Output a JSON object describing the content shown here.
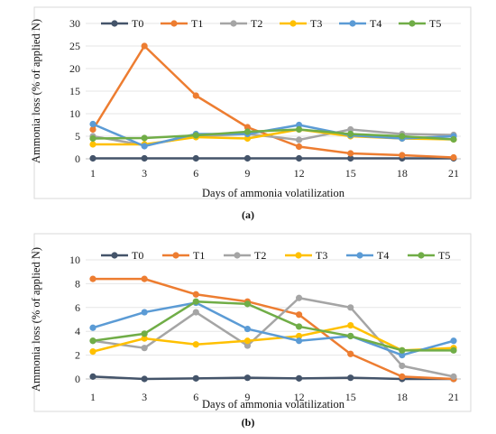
{
  "chart_data": [
    {
      "type": "line",
      "panel_label": "(a)",
      "xlabel": "Days of ammonia volatilization",
      "ylabel": "Ammonia loss (% of applied N)",
      "x": [
        1,
        3,
        6,
        9,
        12,
        15,
        18,
        21
      ],
      "ylim": [
        0,
        30
      ],
      "yticks": [
        0,
        5,
        10,
        15,
        20,
        25,
        30
      ],
      "grid": true,
      "legend_position": "top",
      "series": [
        {
          "name": "T0",
          "color": "#44546a",
          "values": [
            0.1,
            0.1,
            0.1,
            0.1,
            0.1,
            0.1,
            0.1,
            0.1
          ]
        },
        {
          "name": "T1",
          "color": "#ed7d31",
          "values": [
            6.5,
            25.0,
            14.0,
            7.0,
            2.7,
            1.2,
            0.8,
            0.3
          ]
        },
        {
          "name": "T2",
          "color": "#a5a5a5",
          "values": [
            5.0,
            3.0,
            5.0,
            5.5,
            4.2,
            6.5,
            5.5,
            5.3
          ]
        },
        {
          "name": "T3",
          "color": "#ffc000",
          "values": [
            3.2,
            3.2,
            4.8,
            4.5,
            6.5,
            5.0,
            4.5,
            4.3
          ]
        },
        {
          "name": "T4",
          "color": "#5b9bd5",
          "values": [
            7.7,
            2.8,
            5.5,
            5.5,
            7.5,
            5.2,
            4.5,
            5.0
          ]
        },
        {
          "name": "T5",
          "color": "#70ad47",
          "values": [
            4.5,
            4.6,
            5.2,
            6.0,
            6.5,
            5.5,
            5.0,
            4.3
          ]
        }
      ]
    },
    {
      "type": "line",
      "panel_label": "(b)",
      "xlabel": "Days of ammonia volatilization",
      "ylabel": "Ammonia loss (% of applied N)",
      "x": [
        1,
        3,
        6,
        9,
        12,
        15,
        18,
        21
      ],
      "ylim": [
        0,
        10
      ],
      "yticks": [
        0,
        2,
        4,
        6,
        8,
        10
      ],
      "grid": true,
      "legend_position": "top",
      "series": [
        {
          "name": "T0",
          "color": "#44546a",
          "values": [
            0.2,
            0.0,
            0.05,
            0.1,
            0.05,
            0.1,
            0.0,
            0.0
          ]
        },
        {
          "name": "T1",
          "color": "#ed7d31",
          "values": [
            8.4,
            8.4,
            7.1,
            6.5,
            5.4,
            2.1,
            0.2,
            0.0
          ]
        },
        {
          "name": "T2",
          "color": "#a5a5a5",
          "values": [
            3.2,
            2.6,
            5.6,
            2.8,
            6.8,
            6.0,
            1.1,
            0.2
          ]
        },
        {
          "name": "T3",
          "color": "#ffc000",
          "values": [
            2.3,
            3.4,
            2.9,
            3.2,
            3.6,
            4.5,
            2.4,
            2.6
          ]
        },
        {
          "name": "T4",
          "color": "#5b9bd5",
          "values": [
            4.3,
            5.6,
            6.4,
            4.2,
            3.2,
            3.6,
            2.0,
            3.2
          ]
        },
        {
          "name": "T5",
          "color": "#70ad47",
          "values": [
            3.2,
            3.8,
            6.5,
            6.3,
            4.4,
            3.6,
            2.4,
            2.4
          ]
        }
      ]
    }
  ]
}
